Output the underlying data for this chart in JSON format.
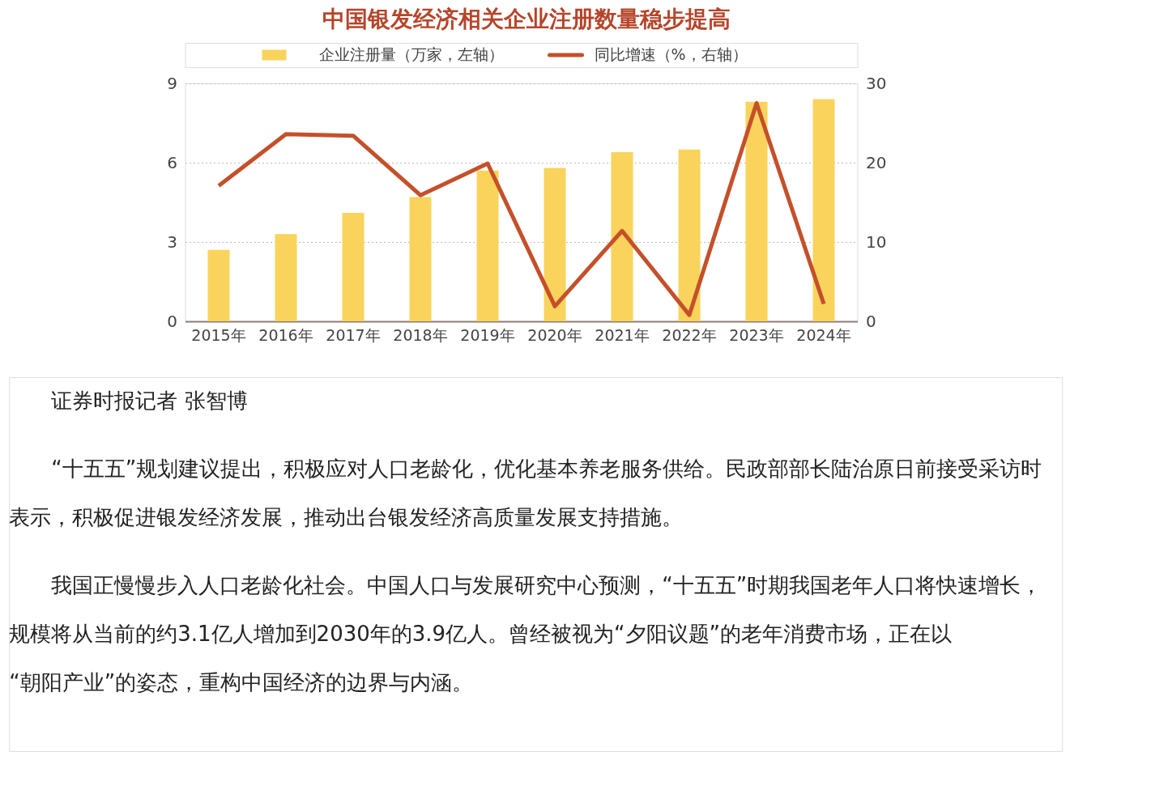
{
  "chart_data": {
    "type": "bar",
    "title": "中国银发经济相关企业注册数量稳步提高",
    "categories": [
      "2015年",
      "2016年",
      "2017年",
      "2018年",
      "2019年",
      "2020年",
      "2021年",
      "2022年",
      "2023年",
      "2024年"
    ],
    "series": [
      {
        "name": "企业注册量（万家，左轴）",
        "type": "bar",
        "color": "#f9d35c",
        "values": [
          2.7,
          3.3,
          4.1,
          4.7,
          5.7,
          5.8,
          6.4,
          6.5,
          8.3,
          8.4
        ]
      },
      {
        "name": "同比增速（%，右轴）",
        "type": "line",
        "axis": "y2",
        "color": "#c4502a",
        "values": [
          17.1,
          23.6,
          23.4,
          15.9,
          19.9,
          1.9,
          11.4,
          0.8,
          27.5,
          2.2
        ]
      }
    ],
    "ylim": [
      0,
      9
    ],
    "yticks": [
      0,
      3,
      6,
      9
    ],
    "y2lim": [
      0,
      30
    ],
    "y2ticks": [
      0,
      10,
      20,
      30
    ],
    "grid": "y",
    "legend": "top",
    "marker": "none",
    "line_style": "solid",
    "annotations": [
      "证券时报记者 张智博",
      "“十五五”规划建议提出，积极应对人口老龄化，优化基本养老服务供给。民政部部长陆治原日前接受采访时表示，积极促进银发经济发展，推动出台银发经济高质量发展支持措施。",
      "我国正慢慢步入人口老龄化社会。中国人口与发展研究中心预测，“十五五”时期我国老年人口将快速增长，规模将从当前的约3.1亿人增加到2030年的3.9亿人。曾经被视为“夕阳议题”的老年消费市场，正在以“朝阳产业”的姿态，重构中国经济的边界与内涵。"
    ]
  }
}
